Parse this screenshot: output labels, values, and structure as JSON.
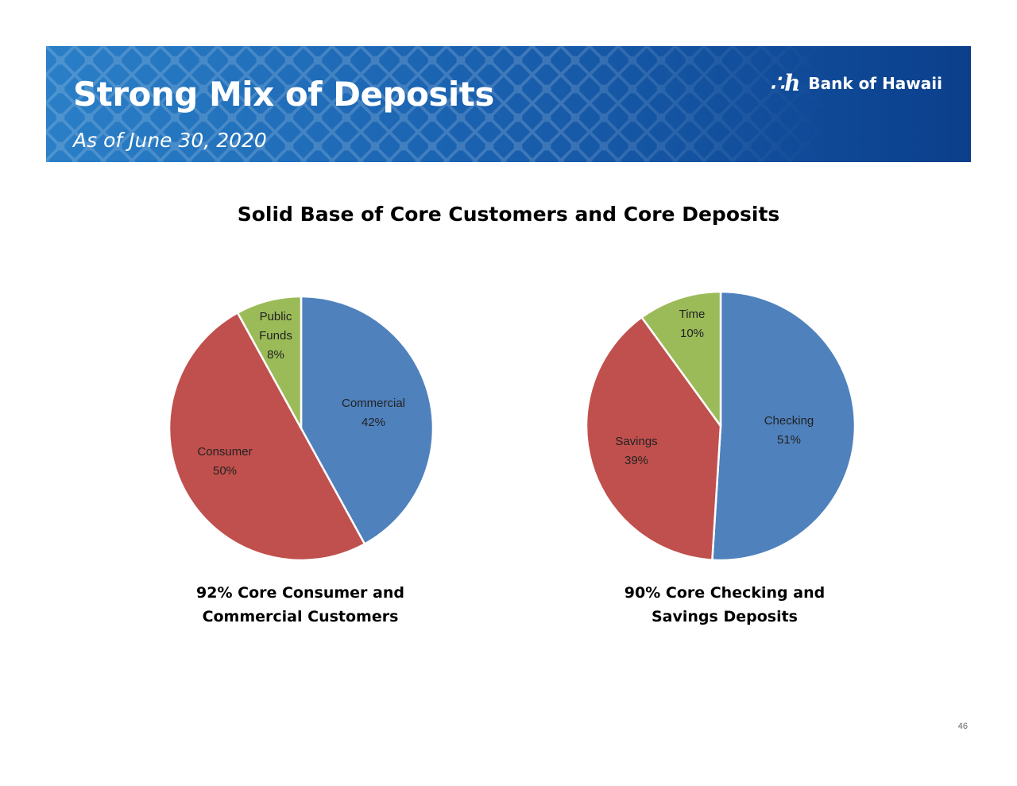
{
  "header": {
    "title": "Strong Mix of Deposits",
    "subtitle": "As of June 30, 2020",
    "logo_mark": "∴h",
    "logo_text": "Bank of Hawaii"
  },
  "main": {
    "heading": "Solid Base of Core Customers and Core Deposits"
  },
  "chart_data": [
    {
      "type": "pie",
      "title": "",
      "slices": [
        {
          "label_lines": [
            "Commercial"
          ],
          "value": 42,
          "value_text": "42%",
          "color": "#4f81bd"
        },
        {
          "label_lines": [
            "Consumer"
          ],
          "value": 50,
          "value_text": "50%",
          "color": "#c0504d"
        },
        {
          "label_lines": [
            "Public",
            "Funds"
          ],
          "value": 8,
          "value_text": "8%",
          "color": "#9bbb59"
        }
      ],
      "caption_lines": [
        "92% Core Consumer and",
        "Commercial Customers"
      ]
    },
    {
      "type": "pie",
      "title": "",
      "slices": [
        {
          "label_lines": [
            "Checking"
          ],
          "value": 51,
          "value_text": "51%",
          "color": "#4f81bd"
        },
        {
          "label_lines": [
            "Savings"
          ],
          "value": 39,
          "value_text": "39%",
          "color": "#c0504d"
        },
        {
          "label_lines": [
            "Time"
          ],
          "value": 10,
          "value_text": "10%",
          "color": "#9bbb59"
        }
      ],
      "caption_lines": [
        "90% Core Checking and",
        "Savings Deposits"
      ]
    }
  ],
  "footer": {
    "page_number": "46"
  }
}
